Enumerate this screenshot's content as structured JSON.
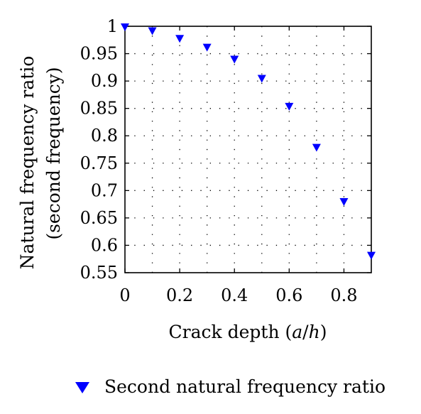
{
  "chart_data": {
    "type": "scatter",
    "title": "",
    "xlabel": "Crack depth (a/h)",
    "xlabel_parts": {
      "before": "Crack depth (",
      "italic_a": "a",
      "slash": "/",
      "italic_h": "h",
      "after": ")"
    },
    "ylabel_line1": "Natural frequency ratio",
    "ylabel_line2": "(second frequency)",
    "xlim": [
      0,
      0.9
    ],
    "ylim": [
      0.55,
      1
    ],
    "x_ticks": [
      0,
      0.2,
      0.4,
      0.6,
      0.8
    ],
    "x_tick_labels": [
      "0",
      "0.2",
      "0.4",
      "0.6",
      "0.8"
    ],
    "y_ticks": [
      0.55,
      0.6,
      0.65,
      0.7,
      0.75,
      0.8,
      0.85,
      0.9,
      0.95,
      1
    ],
    "y_tick_labels": [
      "0.55",
      "0.6",
      "0.65",
      "0.7",
      "0.75",
      "0.8",
      "0.85",
      "0.9",
      "0.95",
      "1"
    ],
    "x_grid": [
      0.1,
      0.2,
      0.3,
      0.4,
      0.5,
      0.6,
      0.7,
      0.8
    ],
    "y_grid": [
      0.6,
      0.65,
      0.7,
      0.75,
      0.8,
      0.85,
      0.9,
      0.95
    ],
    "grid": true,
    "marker_color": "#0000ff",
    "legend_position": "bottom",
    "series": [
      {
        "name": "Second natural frequency ratio",
        "marker": "triangle-down",
        "x": [
          0,
          0.1,
          0.2,
          0.3,
          0.4,
          0.5,
          0.6,
          0.7,
          0.8,
          0.9
        ],
        "y": [
          0.998,
          0.991,
          0.977,
          0.961,
          0.939,
          0.904,
          0.853,
          0.778,
          0.679,
          0.581
        ]
      }
    ]
  }
}
